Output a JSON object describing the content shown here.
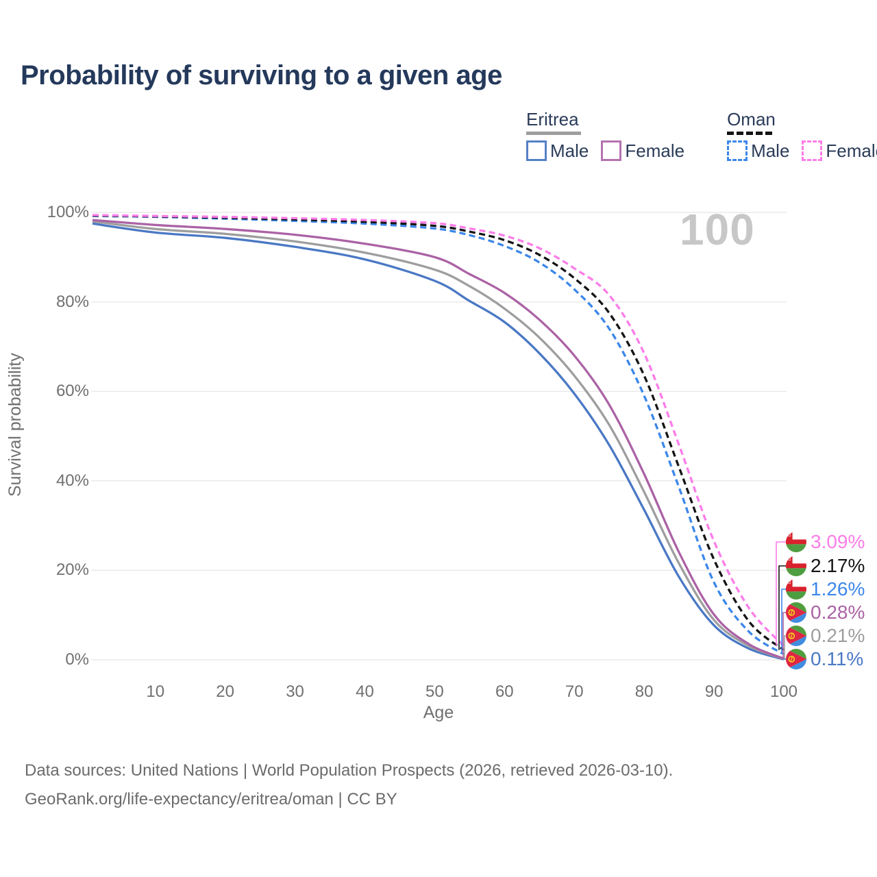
{
  "header": {
    "title": "Probability of surviving to a given age"
  },
  "watermark": "100",
  "legend": {
    "groups": [
      {
        "name": "Eritrea",
        "line_style": "solid",
        "underline_color": "#9e9e9e",
        "items": [
          {
            "label": "Male",
            "color": "#5580c5",
            "dashed": false
          },
          {
            "label": "Female",
            "color": "#b573b0",
            "dashed": false
          }
        ]
      },
      {
        "name": "Oman",
        "line_style": "dashed",
        "underline_color": "#141414",
        "items": [
          {
            "label": "Male",
            "color": "#3c87ea",
            "dashed": true
          },
          {
            "label": "Female",
            "color": "#fb7de9",
            "dashed": true
          }
        ]
      }
    ]
  },
  "chart_data": {
    "type": "line",
    "title": "Probability of surviving to a given age",
    "xlabel": "Age",
    "ylabel": "Survival probability",
    "xlim": [
      1,
      100
    ],
    "ylim": [
      0,
      100
    ],
    "grid": "horizontal",
    "legend_position": "top-right",
    "x_ticks": [
      10,
      20,
      30,
      40,
      50,
      60,
      70,
      80,
      90,
      100
    ],
    "y_ticks": [
      {
        "value": 0,
        "label": "0%"
      },
      {
        "value": 20,
        "label": "20%"
      },
      {
        "value": 40,
        "label": "40%"
      },
      {
        "value": 60,
        "label": "60%"
      },
      {
        "value": 80,
        "label": "80%"
      },
      {
        "value": 100,
        "label": "100%"
      }
    ],
    "x": [
      1,
      10,
      20,
      30,
      40,
      50,
      55,
      60,
      65,
      70,
      75,
      80,
      85,
      90,
      95,
      100
    ],
    "series": [
      {
        "name": "Eritrea Male",
        "country": "eritrea",
        "sex": "male",
        "line": "solid",
        "color": "#4a78c4",
        "end_label": "0.11%",
        "values": [
          97.5,
          95.5,
          94.3,
          92.3,
          89.5,
          84.7,
          80.2,
          75.5,
          68.5,
          59.5,
          48.0,
          33.5,
          18.5,
          7.7,
          2.5,
          0.11
        ]
      },
      {
        "name": "Eritrea Both sexes",
        "country": "eritrea",
        "sex": "both",
        "line": "solid",
        "color": "#9e9e9e",
        "end_label": "0.21%",
        "values": [
          98.0,
          96.3,
          95.2,
          93.5,
          91.0,
          87.2,
          83.5,
          78.5,
          72.0,
          63.5,
          52.5,
          37.5,
          21.5,
          8.9,
          3.1,
          0.21
        ]
      },
      {
        "name": "Eritrea Female",
        "country": "eritrea",
        "sex": "female",
        "line": "solid",
        "color": "#ab62a5",
        "end_label": "0.28%",
        "values": [
          98.3,
          97.2,
          96.3,
          95.0,
          93.0,
          90.0,
          86.2,
          82.0,
          76.0,
          68.0,
          57.0,
          41.5,
          24.0,
          10.1,
          3.5,
          0.28
        ]
      },
      {
        "name": "Oman Male",
        "country": "oman",
        "sex": "male",
        "line": "dashed",
        "color": "#3c87ea",
        "end_label": "1.26%",
        "values": [
          99.2,
          99.0,
          98.6,
          98.1,
          97.5,
          96.4,
          94.9,
          92.5,
          88.8,
          82.8,
          74.0,
          59.0,
          38.5,
          17.3,
          6.3,
          1.26
        ]
      },
      {
        "name": "Oman Both sexes",
        "country": "oman",
        "sex": "both",
        "line": "dashed",
        "color": "#141414",
        "end_label": "2.17%",
        "values": [
          99.3,
          99.1,
          98.8,
          98.4,
          97.9,
          97.0,
          95.7,
          93.8,
          90.5,
          85.3,
          77.5,
          63.5,
          43.0,
          22.4,
          8.6,
          2.17
        ]
      },
      {
        "name": "Oman Female",
        "country": "oman",
        "sex": "female",
        "line": "dashed",
        "color": "#fb7de9",
        "end_label": "3.09%",
        "values": [
          99.4,
          99.2,
          99.0,
          98.7,
          98.3,
          97.6,
          96.4,
          94.8,
          92.0,
          87.5,
          81.5,
          68.5,
          48.0,
          26.5,
          11.6,
          3.09
        ]
      }
    ],
    "end_labels": [
      {
        "value": "3.09%",
        "series": "Oman Female",
        "flag": "oman",
        "color": "#fb7de9"
      },
      {
        "value": "2.17%",
        "series": "Oman Both sexes",
        "flag": "oman",
        "color": "#141414"
      },
      {
        "value": "1.26%",
        "series": "Oman Male",
        "flag": "oman",
        "color": "#3c87ea"
      },
      {
        "value": "0.28%",
        "series": "Eritrea Female",
        "flag": "eritrea",
        "color": "#ab62a5"
      },
      {
        "value": "0.21%",
        "series": "Eritrea Both sexes",
        "flag": "eritrea",
        "color": "#9e9e9e"
      },
      {
        "value": "0.11%",
        "series": "Eritrea Male",
        "flag": "eritrea",
        "color": "#4a78c4"
      }
    ]
  },
  "colors": {
    "grid": "#eaeaea",
    "watermark": "#c7c7c7",
    "title": "#24395b",
    "axis_text": "#707070"
  },
  "footer": {
    "line1": "Data sources: United Nations | World Population Prospects (2026, retrieved 2026-03-10).",
    "line2": "GeoRank.org/life-expectancy/eritrea/oman | CC BY"
  }
}
